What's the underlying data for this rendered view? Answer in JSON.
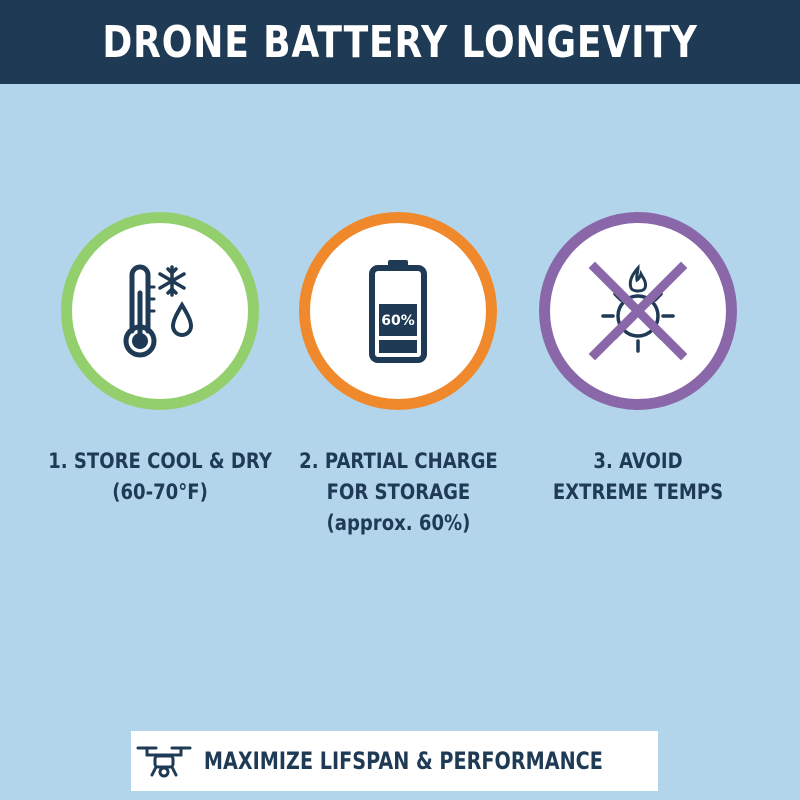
{
  "header": {
    "title": "DRONE BATTERY LONGEVITY"
  },
  "colors": {
    "header_bg": "#1f3a55",
    "background": "#b3d5eb",
    "tip1_ring": "#94cf6e",
    "tip2_ring": "#f0892c",
    "tip3_ring": "#8a67a9"
  },
  "tips": [
    {
      "icon": "thermometer-snowflake-droplet-icon",
      "caption_lines": [
        "1. STORE COOL & DRY",
        "(60-70°F)"
      ]
    },
    {
      "icon": "battery-icon",
      "battery_label": "60%",
      "caption_lines": [
        "2. PARTIAL CHARGE",
        "FOR STORAGE",
        "(approx. 60%)"
      ]
    },
    {
      "icon": "crossed-sun-flame-icon",
      "caption_lines": [
        "3. AVOID",
        "EXTREME TEMPS"
      ]
    }
  ],
  "footer": {
    "icon": "drone-icon",
    "text": "MAXIMIZE LIFSPAN & PERFORMANCE"
  }
}
